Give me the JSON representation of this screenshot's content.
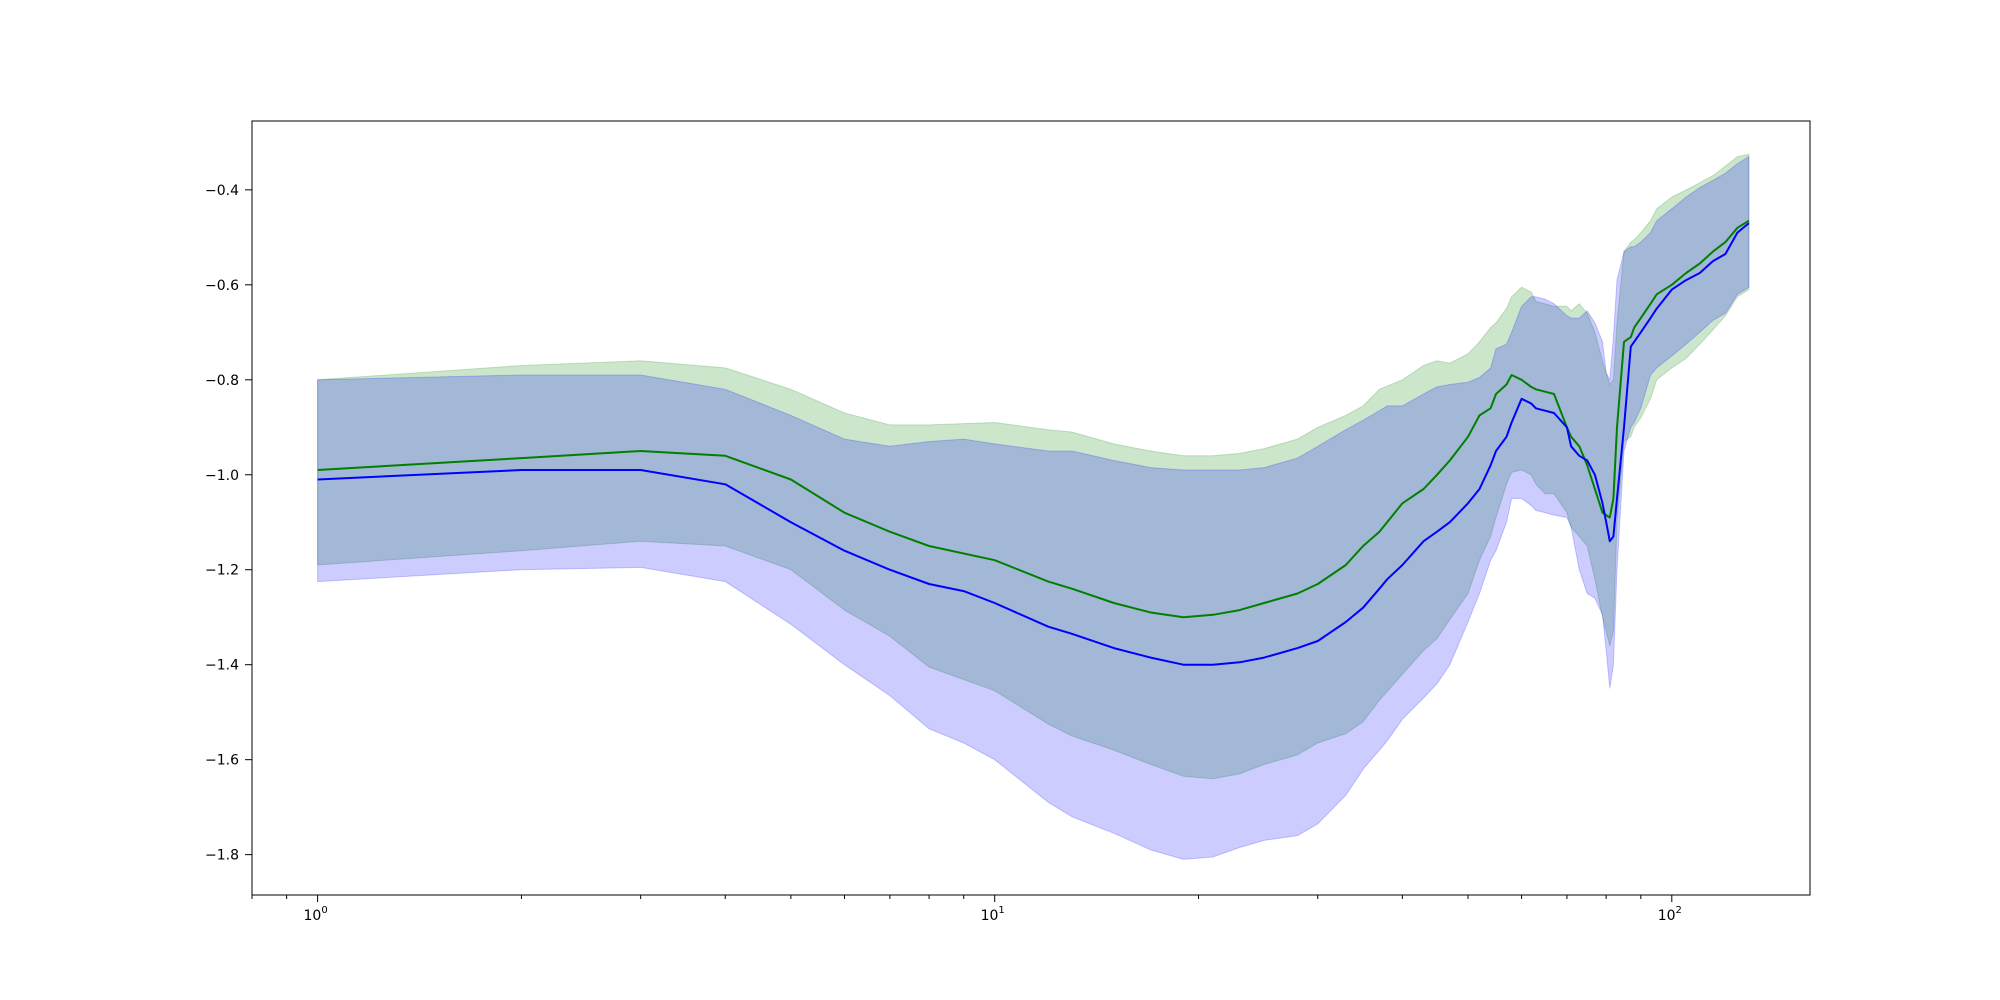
{
  "chart_data": {
    "type": "line",
    "title": "",
    "xlabel": "",
    "ylabel": "",
    "xscale": "log",
    "xlim": [
      0.8,
      160
    ],
    "ylim": [
      -1.885,
      -0.255
    ],
    "grid": false,
    "x_ticks": [
      {
        "value": 1,
        "base": "10",
        "exp": "0"
      },
      {
        "value": 10,
        "base": "10",
        "exp": "1"
      },
      {
        "value": 100,
        "base": "10",
        "exp": "2"
      }
    ],
    "y_ticks": [
      {
        "value": -0.4,
        "label": "−0.4"
      },
      {
        "value": -0.6,
        "label": "−0.6"
      },
      {
        "value": -0.8,
        "label": "−0.8"
      },
      {
        "value": -1.0,
        "label": "−1.0"
      },
      {
        "value": -1.2,
        "label": "−1.2"
      },
      {
        "value": -1.4,
        "label": "−1.4"
      },
      {
        "value": -1.6,
        "label": "−1.6"
      },
      {
        "value": -1.8,
        "label": "−1.8"
      }
    ],
    "series": [
      {
        "color": "#008000",
        "band_color": "#008000",
        "band_opacity": 0.2,
        "x": [
          1,
          2,
          3,
          4,
          5,
          6,
          7,
          8,
          10,
          12,
          13,
          15,
          17,
          19,
          21,
          23,
          25,
          28,
          30,
          33,
          35,
          37,
          40,
          43,
          45,
          47,
          50,
          52,
          54,
          55,
          57,
          58,
          60,
          62,
          63,
          65,
          67,
          70,
          71,
          73,
          75,
          77,
          79,
          81,
          82,
          83,
          85,
          87,
          88,
          90,
          93,
          95,
          100,
          105,
          110,
          115,
          120,
          125,
          130
        ],
        "y": [
          -0.99,
          -0.965,
          -0.95,
          -0.96,
          -1.01,
          -1.08,
          -1.12,
          -1.15,
          -1.18,
          -1.225,
          -1.24,
          -1.27,
          -1.29,
          -1.3,
          -1.295,
          -1.285,
          -1.27,
          -1.25,
          -1.23,
          -1.19,
          -1.15,
          -1.12,
          -1.06,
          -1.03,
          -1.0,
          -0.97,
          -0.92,
          -0.875,
          -0.86,
          -0.83,
          -0.81,
          -0.79,
          -0.8,
          -0.815,
          -0.82,
          -0.825,
          -0.83,
          -0.9,
          -0.92,
          -0.94,
          -0.98,
          -1.03,
          -1.08,
          -1.09,
          -1.05,
          -0.9,
          -0.72,
          -0.71,
          -0.69,
          -0.67,
          -0.64,
          -0.62,
          -0.6,
          -0.575,
          -0.555,
          -0.53,
          -0.51,
          -0.48,
          -0.465
        ],
        "upper": [
          -0.8,
          -0.77,
          -0.76,
          -0.775,
          -0.82,
          -0.87,
          -0.895,
          -0.895,
          -0.89,
          -0.905,
          -0.91,
          -0.935,
          -0.95,
          -0.96,
          -0.96,
          -0.955,
          -0.945,
          -0.925,
          -0.9,
          -0.875,
          -0.855,
          -0.82,
          -0.8,
          -0.77,
          -0.76,
          -0.765,
          -0.745,
          -0.72,
          -0.69,
          -0.68,
          -0.65,
          -0.625,
          -0.605,
          -0.615,
          -0.635,
          -0.64,
          -0.645,
          -0.645,
          -0.655,
          -0.64,
          -0.66,
          -0.7,
          -0.76,
          -0.81,
          -0.8,
          -0.68,
          -0.53,
          -0.51,
          -0.505,
          -0.49,
          -0.465,
          -0.44,
          -0.415,
          -0.4,
          -0.385,
          -0.37,
          -0.35,
          -0.33,
          -0.325
        ],
        "lower": [
          -1.19,
          -1.16,
          -1.14,
          -1.15,
          -1.2,
          -1.285,
          -1.34,
          -1.405,
          -1.455,
          -1.525,
          -1.55,
          -1.58,
          -1.61,
          -1.635,
          -1.64,
          -1.63,
          -1.61,
          -1.59,
          -1.565,
          -1.545,
          -1.52,
          -1.475,
          -1.42,
          -1.37,
          -1.345,
          -1.305,
          -1.25,
          -1.18,
          -1.13,
          -1.09,
          -1.02,
          -0.995,
          -0.99,
          -1.0,
          -1.02,
          -1.04,
          -1.04,
          -1.08,
          -1.11,
          -1.13,
          -1.15,
          -1.22,
          -1.3,
          -1.36,
          -1.33,
          -1.1,
          -0.93,
          -0.92,
          -0.9,
          -0.88,
          -0.84,
          -0.8,
          -0.775,
          -0.755,
          -0.725,
          -0.695,
          -0.665,
          -0.625,
          -0.61
        ]
      },
      {
        "color": "#0000ff",
        "band_color": "#0000ff",
        "band_opacity": 0.2,
        "x": [
          1,
          2,
          3,
          4,
          5,
          6,
          7,
          8,
          9,
          10,
          12,
          13,
          15,
          17,
          19,
          21,
          23,
          25,
          28,
          30,
          33,
          35,
          37,
          38,
          40,
          43,
          45,
          47,
          50,
          52,
          54,
          55,
          57,
          58,
          60,
          62,
          63,
          65,
          67,
          70,
          71,
          73,
          75,
          77,
          79,
          80,
          81,
          82,
          83,
          85,
          87,
          88,
          90,
          93,
          95,
          100,
          105,
          110,
          115,
          120,
          125,
          130
        ],
        "y": [
          -1.01,
          -0.99,
          -0.99,
          -1.02,
          -1.1,
          -1.16,
          -1.2,
          -1.23,
          -1.245,
          -1.27,
          -1.32,
          -1.335,
          -1.365,
          -1.385,
          -1.4,
          -1.4,
          -1.395,
          -1.385,
          -1.365,
          -1.35,
          -1.31,
          -1.28,
          -1.24,
          -1.22,
          -1.19,
          -1.14,
          -1.12,
          -1.1,
          -1.06,
          -1.03,
          -0.98,
          -0.95,
          -0.92,
          -0.89,
          -0.84,
          -0.85,
          -0.86,
          -0.865,
          -0.87,
          -0.9,
          -0.94,
          -0.96,
          -0.97,
          -1.0,
          -1.06,
          -1.1,
          -1.14,
          -1.13,
          -1.05,
          -0.9,
          -0.73,
          -0.72,
          -0.7,
          -0.67,
          -0.65,
          -0.61,
          -0.59,
          -0.575,
          -0.55,
          -0.535,
          -0.49,
          -0.47
        ],
        "upper": [
          -0.8,
          -0.79,
          -0.79,
          -0.82,
          -0.875,
          -0.925,
          -0.94,
          -0.93,
          -0.925,
          -0.935,
          -0.95,
          -0.95,
          -0.97,
          -0.985,
          -0.99,
          -0.99,
          -0.99,
          -0.985,
          -0.965,
          -0.94,
          -0.905,
          -0.885,
          -0.865,
          -0.855,
          -0.855,
          -0.83,
          -0.815,
          -0.81,
          -0.805,
          -0.795,
          -0.775,
          -0.735,
          -0.725,
          -0.7,
          -0.645,
          -0.625,
          -0.625,
          -0.63,
          -0.64,
          -0.665,
          -0.67,
          -0.67,
          -0.655,
          -0.68,
          -0.72,
          -0.785,
          -0.8,
          -0.71,
          -0.59,
          -0.53,
          -0.52,
          -0.52,
          -0.51,
          -0.49,
          -0.465,
          -0.44,
          -0.415,
          -0.395,
          -0.38,
          -0.365,
          -0.345,
          -0.33
        ],
        "lower": [
          -1.225,
          -1.2,
          -1.195,
          -1.225,
          -1.315,
          -1.4,
          -1.465,
          -1.535,
          -1.565,
          -1.6,
          -1.69,
          -1.72,
          -1.755,
          -1.79,
          -1.81,
          -1.805,
          -1.785,
          -1.77,
          -1.76,
          -1.735,
          -1.675,
          -1.62,
          -1.58,
          -1.56,
          -1.515,
          -1.47,
          -1.44,
          -1.4,
          -1.31,
          -1.25,
          -1.18,
          -1.16,
          -1.1,
          -1.05,
          -1.05,
          -1.065,
          -1.075,
          -1.08,
          -1.085,
          -1.09,
          -1.11,
          -1.2,
          -1.25,
          -1.26,
          -1.295,
          -1.37,
          -1.45,
          -1.4,
          -1.2,
          -0.95,
          -0.9,
          -0.89,
          -0.86,
          -0.79,
          -0.775,
          -0.75,
          -0.725,
          -0.7,
          -0.675,
          -0.66,
          -0.62,
          -0.605
        ]
      }
    ]
  }
}
